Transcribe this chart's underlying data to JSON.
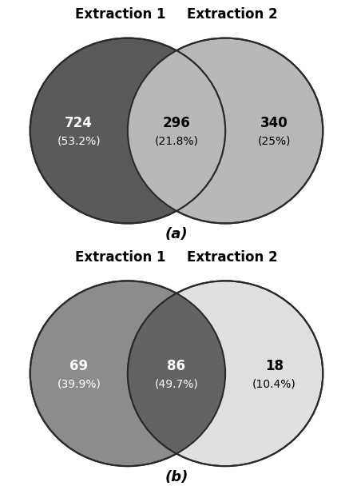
{
  "panel_a": {
    "title1": "Extraction 1",
    "title2": "Extraction 2",
    "label": "(a)",
    "left_value": "724",
    "left_pct": "(53.2%)",
    "center_value": "296",
    "center_pct": "(21.8%)",
    "right_value": "340",
    "right_pct": "(25%)",
    "color1": "#5a5a5a",
    "color2": "#b8b8b8",
    "overlap_color": "#b8b8b8",
    "text_color_left": "white",
    "text_color_center": "black",
    "text_color_right": "black",
    "overlap_darken": false
  },
  "panel_b": {
    "title1": "Extraction 1",
    "title2": "Extraction 2",
    "label": "(b)",
    "left_value": "69",
    "left_pct": "(39.9%)",
    "center_value": "86",
    "center_pct": "(49.7%)",
    "right_value": "18",
    "right_pct": "(10.4%)",
    "color1": "#8c8c8c",
    "color2": "#e0e0e0",
    "overlap_color": "#636363",
    "text_color_left": "white",
    "text_color_center": "white",
    "text_color_right": "black",
    "overlap_darken": true
  },
  "background_color": "#ffffff",
  "edge_color": "#2a2a2a",
  "title_fontsize": 12,
  "value_fontsize": 12,
  "pct_fontsize": 10,
  "label_fontsize": 13
}
